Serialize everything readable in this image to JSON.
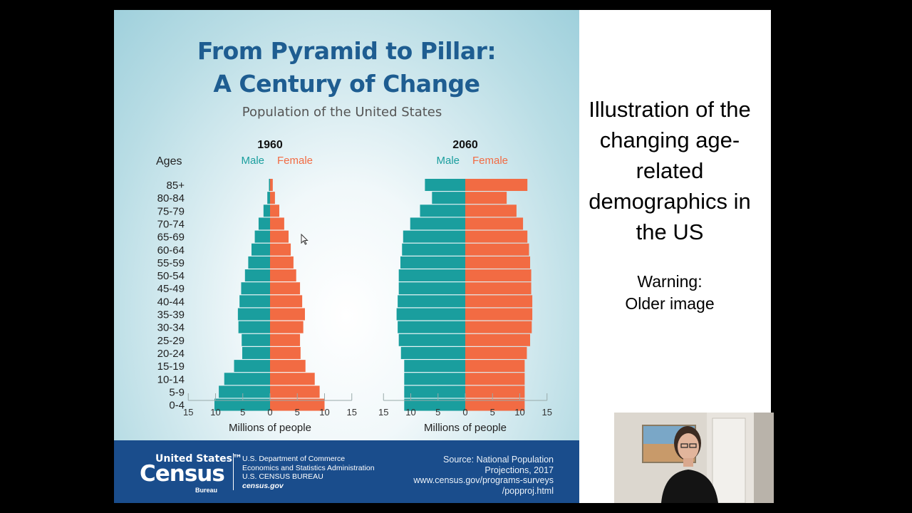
{
  "infographic": {
    "title_line1": "From Pyramid to Pillar:",
    "title_line2": "A Century of Change",
    "subtitle": "Population of the United States",
    "ages_label": "Ages",
    "male_label": "Male",
    "female_label": "Female",
    "xlabel": "Millions of people"
  },
  "footer": {
    "logo_us": "United States™",
    "logo_census": "Census",
    "logo_bureau": "Bureau",
    "dept_line1": "U.S. Department of Commerce",
    "dept_line2": "Economics and Statistics Administration",
    "dept_line3": "U.S. CENSUS BUREAU",
    "dept_line4": "census.gov",
    "source_line1": "Source: National Population",
    "source_line2": "Projections, 2017",
    "source_line3": "www.census.gov/programs-surveys",
    "source_line4": "/popproj.html"
  },
  "slide_text": {
    "description": "Illustration of the changing age-related demographics in the US",
    "warning_line1": "Warning:",
    "warning_line2": "Older image"
  },
  "colors": {
    "male": "#1a9e9e",
    "female": "#f26b43",
    "title": "#1e5d91",
    "footer_bg": "#1a4d8c"
  },
  "chart_data": [
    {
      "type": "bar",
      "title": "1960",
      "categories": [
        "85+",
        "80-84",
        "75-79",
        "70-74",
        "65-69",
        "60-64",
        "55-59",
        "50-54",
        "45-49",
        "40-44",
        "35-39",
        "30-34",
        "25-29",
        "20-24",
        "15-19",
        "10-14",
        "5-9",
        "0-4"
      ],
      "series": [
        {
          "name": "Male",
          "values": [
            0.2,
            0.5,
            1.2,
            2.1,
            2.8,
            3.4,
            4.0,
            4.6,
            5.3,
            5.6,
            5.9,
            5.8,
            5.2,
            5.1,
            6.6,
            8.4,
            9.4,
            10.2
          ]
        },
        {
          "name": "Female",
          "values": [
            0.5,
            0.9,
            1.7,
            2.6,
            3.4,
            3.8,
            4.3,
            4.8,
            5.5,
            5.9,
            6.4,
            6.1,
            5.5,
            5.6,
            6.5,
            8.2,
            9.1,
            10.0
          ]
        }
      ],
      "xlabel": "Millions of people",
      "xlim": [
        -15,
        15
      ],
      "xticks": [
        15,
        10,
        5,
        0,
        5,
        10,
        15
      ]
    },
    {
      "type": "bar",
      "title": "2060",
      "categories": [
        "85+",
        "80-84",
        "75-79",
        "70-74",
        "65-69",
        "60-64",
        "55-59",
        "50-54",
        "45-49",
        "40-44",
        "35-39",
        "30-34",
        "25-29",
        "20-24",
        "15-19",
        "10-14",
        "5-9",
        "0-4"
      ],
      "series": [
        {
          "name": "Male",
          "values": [
            7.4,
            6.1,
            8.3,
            10.1,
            11.4,
            11.6,
            11.9,
            12.2,
            12.2,
            12.4,
            12.6,
            12.4,
            12.2,
            11.8,
            11.2,
            11.2,
            11.2,
            11.2
          ]
        },
        {
          "name": "Female",
          "values": [
            11.4,
            7.6,
            9.4,
            10.6,
            11.4,
            11.7,
            11.9,
            12.1,
            12.1,
            12.3,
            12.3,
            12.2,
            11.9,
            11.3,
            10.9,
            10.9,
            10.9,
            10.9
          ]
        }
      ],
      "xlabel": "Millions of people",
      "xlim": [
        -15,
        15
      ],
      "xticks": [
        15,
        10,
        5,
        0,
        5,
        10,
        15
      ]
    }
  ]
}
